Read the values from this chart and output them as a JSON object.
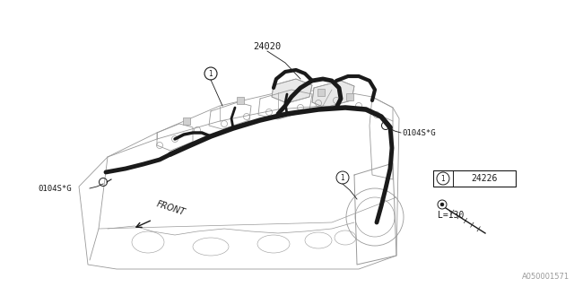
{
  "bg_color": "#ffffff",
  "line_color": "#1a1a1a",
  "gray_line": "#999999",
  "part_label_24020": "24020",
  "part_label_24226": "24226",
  "part_label_0104SG": "0104S*G",
  "label_front": "FRONT",
  "label_L130": "L=130",
  "watermark": "A050001571",
  "fig_width": 6.4,
  "fig_height": 3.2,
  "dpi": 100
}
